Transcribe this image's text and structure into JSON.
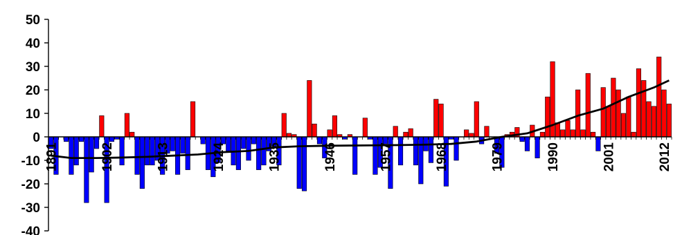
{
  "chart_data": {
    "type": "bar",
    "title": "",
    "xlabel": "",
    "ylabel": "",
    "ylim": [
      -40,
      50
    ],
    "yticks": [
      50,
      40,
      30,
      20,
      10,
      0,
      -10,
      -20,
      -30,
      -40
    ],
    "x_start": 1891,
    "x_end": 2013,
    "xtick_labels": [
      "1891",
      "1902",
      "1913",
      "1924",
      "1935",
      "1946",
      "1957",
      "1968",
      "1979",
      "1990",
      "2001",
      "2012"
    ],
    "colors": {
      "positive": "#ff0000",
      "negative": "#0000ff",
      "trend": "#000000",
      "bar_outline": "#000000"
    },
    "grid": false,
    "legend": "none",
    "series": [
      {
        "kind": "bar",
        "years": [
          1891,
          1892,
          1893,
          1894,
          1895,
          1896,
          1897,
          1898,
          1899,
          1900,
          1901,
          1902,
          1903,
          1904,
          1905,
          1906,
          1907,
          1908,
          1909,
          1910,
          1911,
          1912,
          1913,
          1914,
          1915,
          1916,
          1917,
          1918,
          1919,
          1920,
          1921,
          1922,
          1923,
          1924,
          1925,
          1926,
          1927,
          1928,
          1929,
          1930,
          1931,
          1932,
          1933,
          1934,
          1935,
          1936,
          1937,
          1938,
          1939,
          1940,
          1941,
          1942,
          1943,
          1944,
          1945,
          1946,
          1947,
          1948,
          1949,
          1950,
          1951,
          1952,
          1953,
          1954,
          1955,
          1956,
          1957,
          1958,
          1959,
          1960,
          1961,
          1962,
          1963,
          1964,
          1965,
          1966,
          1967,
          1968,
          1969,
          1970,
          1971,
          1972,
          1973,
          1974,
          1975,
          1976,
          1977,
          1978,
          1979,
          1980,
          1981,
          1982,
          1983,
          1984,
          1985,
          1986,
          1987,
          1988,
          1989,
          1990,
          1991,
          1992,
          1993,
          1994,
          1995,
          1996,
          1997,
          1998,
          1999,
          2000,
          2001,
          2002,
          2003,
          2004,
          2005,
          2006,
          2007,
          2008,
          2009,
          2010,
          2011,
          2012,
          2013
        ],
        "values": [
          -5,
          -16,
          0,
          -2,
          -16,
          -12,
          -2,
          -28,
          -15,
          -5,
          9,
          -28,
          -2,
          -1,
          -12,
          10,
          2,
          -16,
          -22,
          -12,
          -12,
          -10,
          -16,
          -7,
          -6,
          -16,
          -7,
          -14,
          15,
          0,
          -3,
          -14,
          -17,
          -11,
          -3,
          -6,
          -12,
          -14,
          -5,
          -10,
          -3,
          -14,
          -12,
          -6,
          -4,
          -12,
          10,
          1.5,
          1,
          -22,
          -23,
          24,
          5.5,
          -3,
          -9,
          3,
          9,
          1,
          -1,
          1,
          -16,
          0,
          8,
          -1,
          -16,
          -13,
          -3,
          -22,
          4.5,
          -12,
          2,
          3.5,
          -12,
          -20,
          -6,
          -11,
          16,
          14,
          -21,
          -1,
          -10,
          0,
          3,
          1.5,
          15,
          -3,
          4.5,
          0,
          -7,
          -13,
          1,
          2,
          4,
          -2,
          -6,
          5,
          -9,
          2,
          17,
          32,
          6,
          3,
          7,
          3,
          20,
          3,
          27,
          2,
          -6,
          21,
          13,
          25,
          20,
          10,
          17,
          2,
          29,
          24,
          15,
          13,
          34,
          20,
          14
        ]
      },
      {
        "kind": "line",
        "name": "",
        "points": [
          [
            1891,
            -8
          ],
          [
            1895,
            -9
          ],
          [
            1900,
            -9
          ],
          [
            1905,
            -8.8
          ],
          [
            1910,
            -8.5
          ],
          [
            1915,
            -8
          ],
          [
            1920,
            -7.5
          ],
          [
            1925,
            -6.5
          ],
          [
            1930,
            -6
          ],
          [
            1935,
            -4.5
          ],
          [
            1940,
            -4
          ],
          [
            1945,
            -3.8
          ],
          [
            1950,
            -3.7
          ],
          [
            1955,
            -3.6
          ],
          [
            1960,
            -3.5
          ],
          [
            1965,
            -3.3
          ],
          [
            1970,
            -3
          ],
          [
            1975,
            -2
          ],
          [
            1980,
            0
          ],
          [
            1985,
            1.5
          ],
          [
            1990,
            5
          ],
          [
            1995,
            9
          ],
          [
            2000,
            12
          ],
          [
            2005,
            17
          ],
          [
            2010,
            21
          ],
          [
            2013,
            24
          ]
        ]
      }
    ]
  }
}
